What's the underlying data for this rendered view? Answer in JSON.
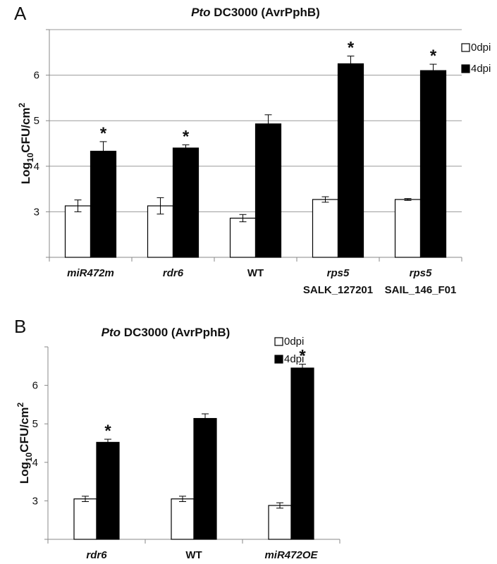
{
  "chart_data": [
    {
      "type": "bar",
      "panel": "A",
      "title_italic": "Pto",
      "title_rest": " DC3000 (AvrPphB)",
      "ylabel": "Log10CFU/cm2",
      "ylabel_parts": {
        "main": "Log",
        "sub": "10",
        "mid": "CFU/cm",
        "sup": "2"
      },
      "ylim": [
        2,
        7
      ],
      "yticks": [
        3,
        4,
        5,
        6
      ],
      "grid": true,
      "legend_position": "top-right",
      "categories": [
        {
          "line1": "miR472m",
          "line1_italic": true,
          "line2": ""
        },
        {
          "line1": "rdr6",
          "line1_italic": true,
          "line2": ""
        },
        {
          "line1": "WT",
          "line1_italic": false,
          "line2": ""
        },
        {
          "line1": "rps5",
          "line1_italic": true,
          "line2": "SALK_127201"
        },
        {
          "line1": "rps5",
          "line1_italic": true,
          "line2": "SAIL_146_F01"
        }
      ],
      "series": [
        {
          "name": "0dpi",
          "color": "#ffffff",
          "values": [
            3.13,
            3.13,
            2.86,
            3.27,
            3.27
          ],
          "errors": [
            0.13,
            0.18,
            0.08,
            0.06,
            0.02
          ]
        },
        {
          "name": "4dpi",
          "color": "#000000",
          "values": [
            4.33,
            4.4,
            4.93,
            6.25,
            6.1
          ],
          "errors": [
            0.21,
            0.07,
            0.2,
            0.17,
            0.14
          ]
        }
      ],
      "significance": [
        "*",
        "*",
        "",
        "*",
        "*"
      ]
    },
    {
      "type": "bar",
      "panel": "B",
      "title_italic": "Pto",
      "title_rest": " DC3000 (AvrPphB)",
      "ylabel": "Log10CFU/cm2",
      "ylabel_parts": {
        "main": "Log",
        "sub": "10",
        "mid": "CFU/cm",
        "sup": "2"
      },
      "ylim": [
        2,
        7
      ],
      "yticks": [
        3,
        4,
        5,
        6
      ],
      "grid": false,
      "legend_position": "top-right",
      "categories": [
        {
          "line1": "rdr6",
          "line1_italic": true,
          "line2": ""
        },
        {
          "line1": "WT",
          "line1_italic": false,
          "line2": ""
        },
        {
          "line1": "miR472OE",
          "line1_italic": true,
          "line2": ""
        }
      ],
      "series": [
        {
          "name": "0dpi",
          "color": "#ffffff",
          "values": [
            3.05,
            3.05,
            2.88
          ],
          "errors": [
            0.07,
            0.07,
            0.07
          ]
        },
        {
          "name": "4dpi",
          "color": "#000000",
          "values": [
            4.52,
            5.14,
            6.45
          ],
          "errors": [
            0.08,
            0.12,
            0.1
          ]
        }
      ],
      "significance": [
        "*",
        "",
        "*"
      ]
    }
  ]
}
